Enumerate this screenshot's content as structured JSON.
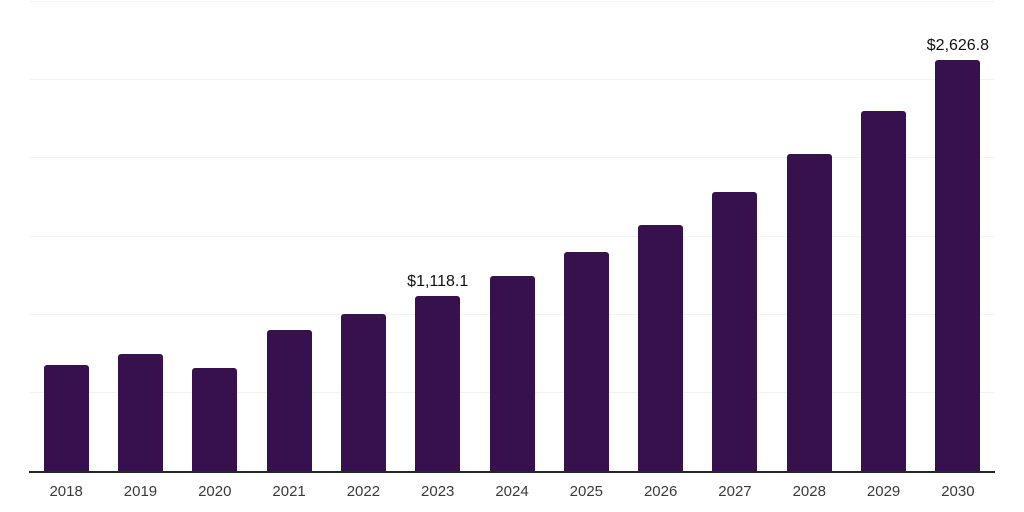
{
  "chart_data": {
    "type": "bar",
    "title": "",
    "xlabel": "",
    "ylabel": "",
    "categories": [
      "2018",
      "2019",
      "2020",
      "2021",
      "2022",
      "2023",
      "2024",
      "2025",
      "2026",
      "2027",
      "2028",
      "2029",
      "2030"
    ],
    "values": [
      675,
      750,
      662,
      899,
      1002,
      1118.1,
      1246,
      1400,
      1576,
      1783,
      2025,
      2300,
      2626.8
    ],
    "value_labels": [
      "",
      "",
      "",
      "",
      "",
      "$1,118.1",
      "",
      "",
      "",
      "",
      "",
      "",
      "$2,626.8"
    ],
    "ylim": [
      0,
      3000
    ],
    "gridline_interval": 500,
    "grid": true,
    "legend": false,
    "bar_color": "#36114e",
    "gridline_color": "#f2f2f2",
    "axis_line_color": "#262626",
    "tick_label_color": "#3a3a3a",
    "value_label_color": "#111111"
  }
}
